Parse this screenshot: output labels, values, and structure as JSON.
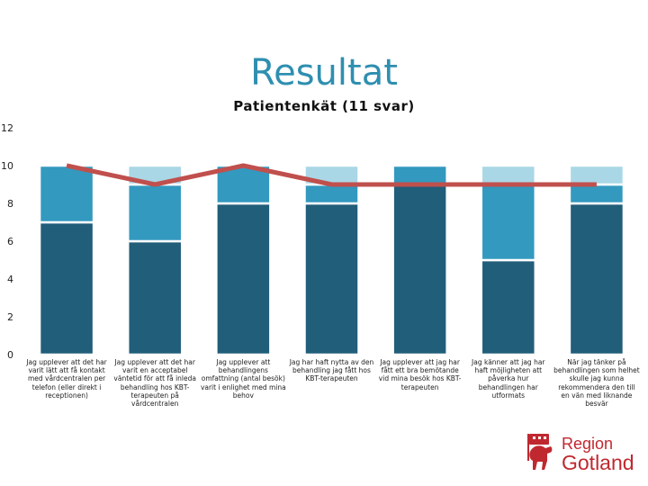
{
  "slide": {
    "title": "Resultat",
    "subtitle": "Patientenkät (11 svar)"
  },
  "logo": {
    "region": "Region",
    "gotland": "Gotland",
    "icon": "gotland-ram-icon"
  },
  "colors": {
    "dark": "#215e7a",
    "mid": "#3399bf",
    "light": "#a9d7e6",
    "line": "#c0504d"
  },
  "chart_data": {
    "type": "bar",
    "stacked": true,
    "categories": [
      "Jag upplever att det har varit lätt att få kontakt med vårdcentralen per telefon (eller direkt i receptionen)",
      "Jag upplever att det har varit en acceptabel väntetid för att få inleda behandling hos KBT-terapeuten på vårdcentralen",
      "Jag upplever att behandlingens omfattning (antal besök) varit i enlighet med mina behov",
      "Jag har haft nytta av den behandling jag fått hos KBT-terapeuten",
      "Jag upplever att jag har fått ett bra bemötande vid mina besök hos KBT-terapeuten",
      "Jag känner att jag har haft möjligheten att påverka hur behandlingen har utformats",
      "När jag tänker på behandlingen som helhet skulle jag kunna rekommendera den till en vän med liknande besvär"
    ],
    "series": [
      {
        "values": [
          7,
          6,
          8,
          8,
          9,
          5,
          8
        ],
        "color": "#215e7a"
      },
      {
        "values": [
          3,
          3,
          2,
          1,
          1,
          4,
          1
        ],
        "color": "#3399bf"
      },
      {
        "values": [
          0,
          1,
          0,
          1,
          0,
          1,
          1
        ],
        "color": "#a9d7e6"
      }
    ],
    "line": {
      "values": [
        10,
        9,
        10,
        9,
        9,
        9,
        9
      ],
      "color": "#c0504d"
    },
    "ylim": [
      0,
      12
    ],
    "yticks": [
      "0",
      "2",
      "4",
      "6",
      "8",
      "10",
      "12"
    ],
    "grid": false,
    "legend": "none"
  }
}
